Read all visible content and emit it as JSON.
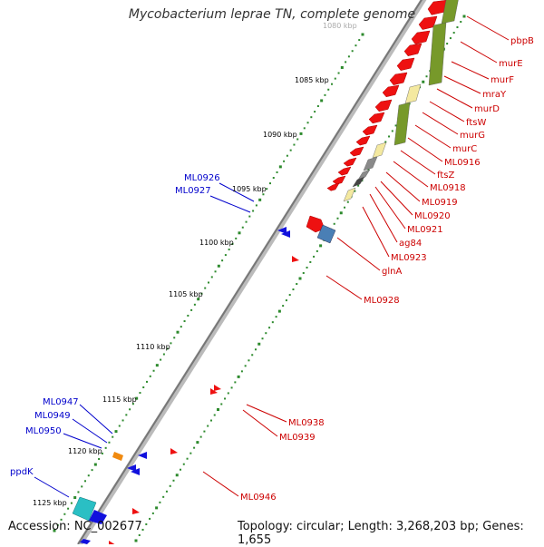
{
  "title": "Mycobacterium leprae TN, complete genome",
  "footer": {
    "accession": "Accession: NC_002677",
    "topology": "Topology: circular; Length: 3,268,203 bp; Genes: 1,655"
  },
  "colors": {
    "forward_gene": "#ee1111",
    "reverse_gene": "#1111dd",
    "green_feature": "#77992a",
    "yellow_feature": "#f4e9a0",
    "gray_feature": "#8a8a8a",
    "dark_feature": "#444444",
    "teal_feature": "#2abfc4",
    "steel_blue_feature": "#4a7fb5",
    "orange_feature": "#f08a10",
    "dot_track": "#2d8a2d",
    "label_red": "#cc0000",
    "label_blue": "#0000cc"
  },
  "scale_labels": [
    "1080 kbp",
    "1085 kbp",
    "1090 kbp",
    "1095 kbp",
    "1100 kbp",
    "1105 kbp",
    "1110 kbp",
    "1115 kbp",
    "1120 kbp",
    "1125 kbp"
  ],
  "gene_labels_right": [
    "pbpB",
    "murE",
    "murF",
    "mraY",
    "murD",
    "ftsW",
    "murG",
    "murC",
    "ML0916",
    "ftsZ",
    "ML0918",
    "ML0919",
    "ML0920",
    "ML0921",
    "ag84",
    "ML0923",
    "glnA",
    "ML0928",
    "ML0938",
    "ML0939",
    "ML0946"
  ],
  "gene_labels_left": [
    "ML0926",
    "ML0927",
    "ML0947",
    "ML0949",
    "ML0950",
    "ppdK"
  ]
}
